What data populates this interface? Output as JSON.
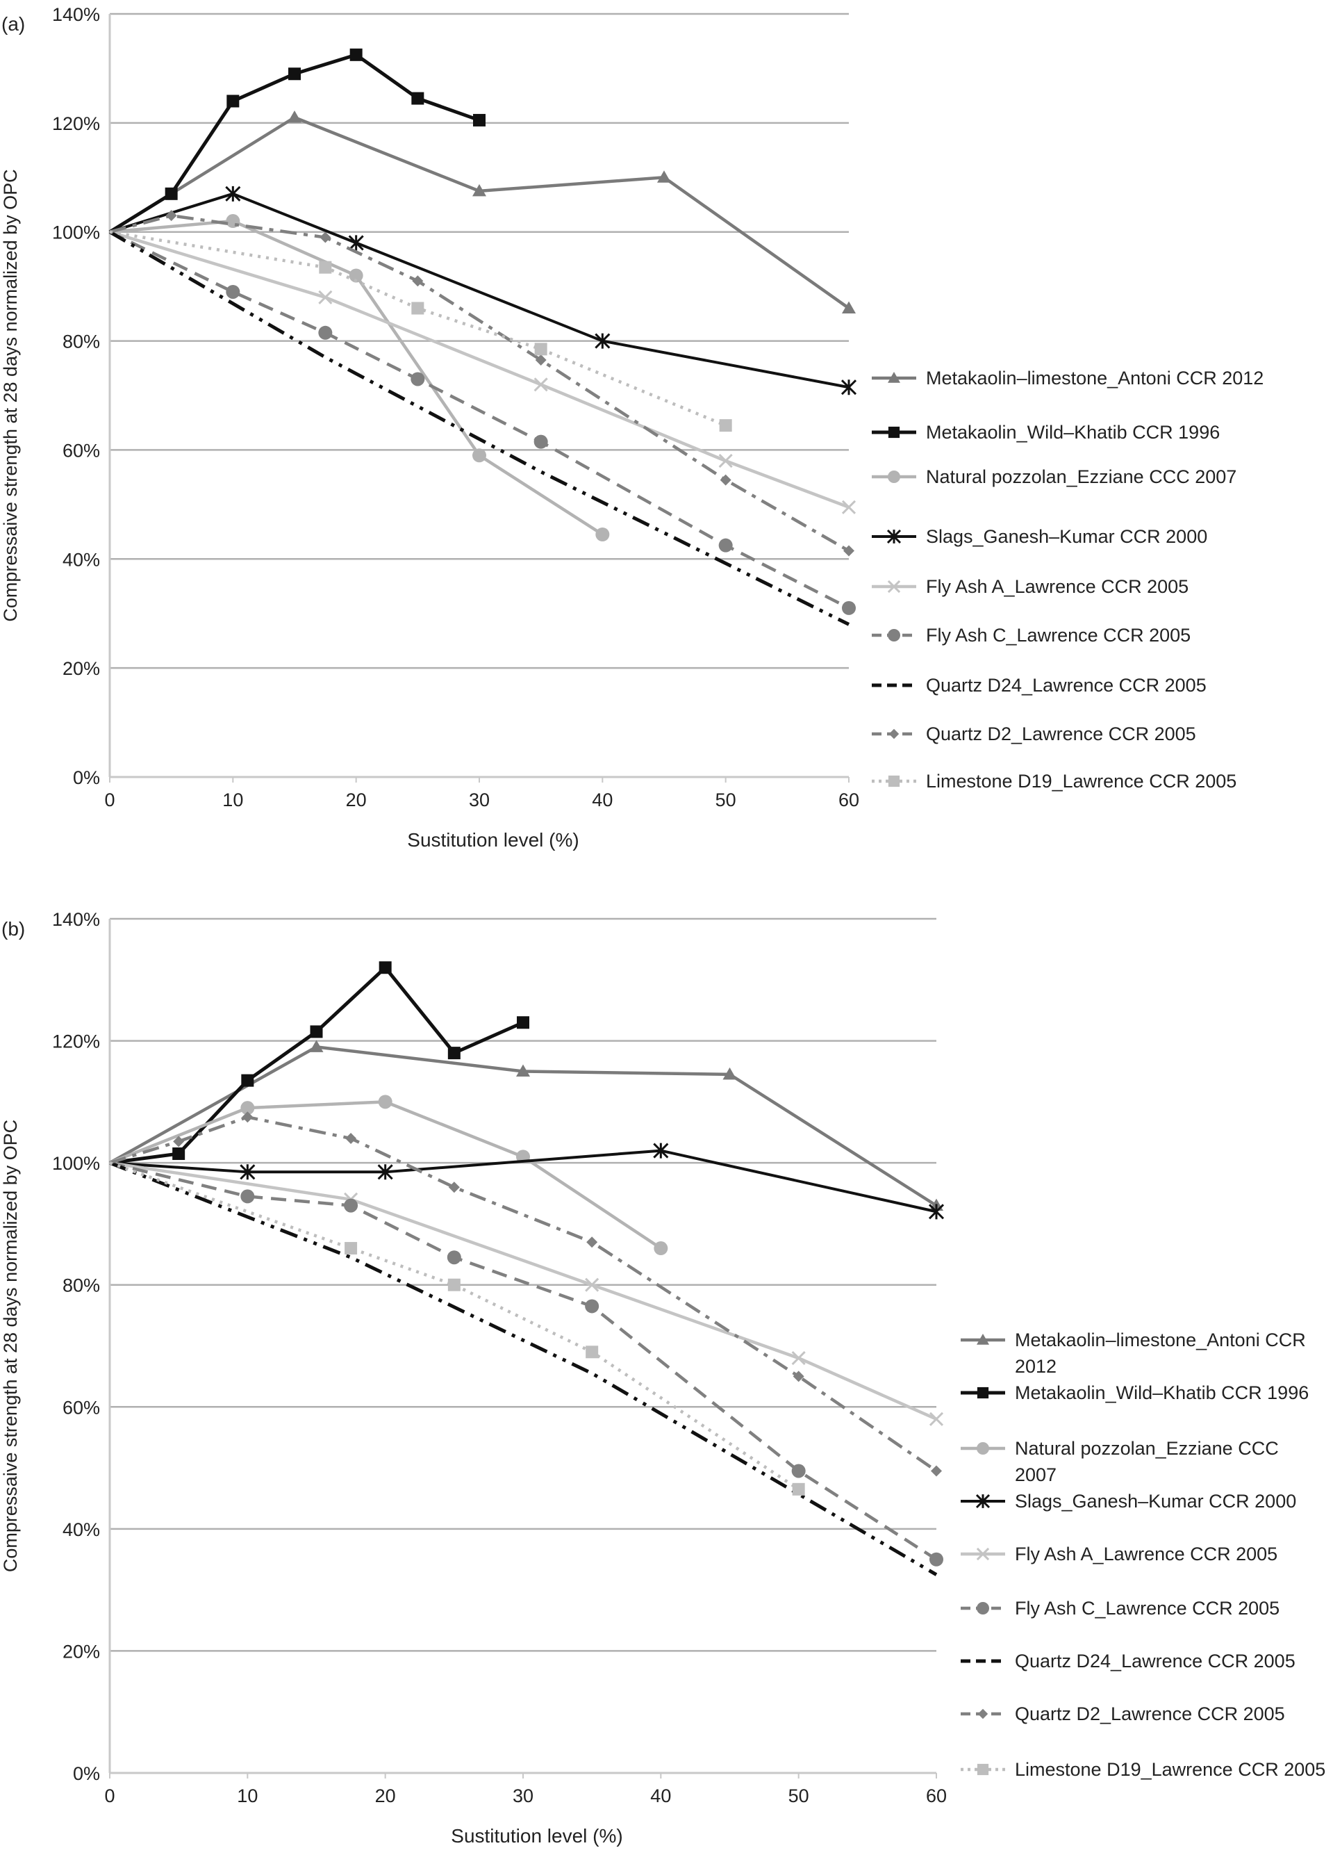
{
  "chart_data": [
    {
      "panel_label": "(a)",
      "type": "line",
      "xlabel": "Sustitution level (%)",
      "ylabel": "Compressaive strength at 28 days normalized by OPC",
      "xlim": [
        0,
        60
      ],
      "ylim": [
        0,
        140
      ],
      "x_ticks": [
        "0",
        "10",
        "20",
        "30",
        "40",
        "50",
        "60"
      ],
      "y_ticks": [
        "0%",
        "20%",
        "40%",
        "60%",
        "80%",
        "100%",
        "120%",
        "140%"
      ],
      "grid": "horizontal",
      "legend": "right",
      "series": [
        {
          "key": "mk_ls",
          "name": "Metakaolin–limestone_Antoni CCR 2012",
          "x": [
            0,
            15,
            30,
            45,
            60
          ],
          "y": [
            100,
            121,
            107.5,
            110,
            86
          ]
        },
        {
          "key": "mk_wk",
          "name": "Metakaolin_Wild–Khatib CCR 1996",
          "x": [
            0,
            5,
            10,
            15,
            20,
            25,
            30
          ],
          "y": [
            100,
            107,
            124,
            129,
            132.5,
            124.5,
            120.5
          ]
        },
        {
          "key": "np_ez",
          "name": "Natural pozzolan_Ezziane CCC 2007",
          "x": [
            0,
            10,
            20,
            30,
            40
          ],
          "y": [
            100,
            102,
            92,
            59,
            44.5
          ]
        },
        {
          "key": "sl_gk",
          "name": "Slags_Ganesh–Kumar CCR 2000",
          "x": [
            0,
            10,
            20,
            40,
            60
          ],
          "y": [
            100,
            107,
            98,
            80,
            71.5
          ]
        },
        {
          "key": "fa_a",
          "name": "Fly Ash A_Lawrence CCR 2005",
          "x": [
            0,
            17.5,
            35,
            50,
            60
          ],
          "y": [
            100,
            88,
            72,
            58,
            49.5
          ]
        },
        {
          "key": "fa_c",
          "name": "Fly Ash C_Lawrence CCR 2005",
          "x": [
            0,
            10,
            17.5,
            25,
            35,
            50,
            60
          ],
          "y": [
            100,
            89,
            81.5,
            73,
            61.5,
            42.5,
            31
          ]
        },
        {
          "key": "qd24",
          "name": "Quartz D24_Lawrence CCR 2005",
          "x": [
            0,
            17.5,
            35,
            60
          ],
          "y": [
            100,
            77,
            56,
            28
          ]
        },
        {
          "key": "qd2",
          "name": "Quartz D2_Lawrence CCR 2005",
          "x": [
            0,
            5,
            17.5,
            25,
            35,
            50,
            60
          ],
          "y": [
            100,
            103,
            99,
            91,
            76.5,
            54.5,
            41.5
          ]
        },
        {
          "key": "ls19",
          "name": "Limestone D19_Lawrence CCR 2005",
          "x": [
            0,
            17.5,
            25,
            35,
            50
          ],
          "y": [
            100,
            93.5,
            86,
            78.5,
            64.5
          ]
        }
      ]
    },
    {
      "panel_label": "(b)",
      "type": "line",
      "xlabel": "Sustitution level (%)",
      "ylabel": "Compressaive strength at 28 days normalized by OPC",
      "xlim": [
        0,
        60
      ],
      "ylim": [
        0,
        140
      ],
      "x_ticks": [
        "0",
        "10",
        "20",
        "30",
        "40",
        "50",
        "60"
      ],
      "y_ticks": [
        "0%",
        "20%",
        "40%",
        "60%",
        "80%",
        "100%",
        "120%",
        "140%"
      ],
      "grid": "horizontal",
      "legend": "right",
      "series": [
        {
          "key": "mk_ls",
          "name": "Metakaolin–limestone_Antoni CCR 2012",
          "x": [
            0,
            15,
            30,
            45,
            60
          ],
          "y": [
            100,
            119,
            115,
            114.5,
            93
          ]
        },
        {
          "key": "mk_wk",
          "name": "Metakaolin_Wild–Khatib CCR 1996",
          "x": [
            0,
            5,
            10,
            15,
            20,
            25,
            30
          ],
          "y": [
            100,
            101.5,
            113.5,
            121.5,
            132,
            118,
            123
          ]
        },
        {
          "key": "np_ez",
          "name": "Natural pozzolan_Ezziane CCC 2007",
          "x": [
            0,
            10,
            20,
            30,
            40
          ],
          "y": [
            100,
            109,
            110,
            101,
            86
          ]
        },
        {
          "key": "sl_gk",
          "name": "Slags_Ganesh–Kumar CCR 2000",
          "x": [
            0,
            10,
            20,
            40,
            60
          ],
          "y": [
            100,
            98.5,
            98.5,
            102,
            92
          ]
        },
        {
          "key": "fa_a",
          "name": "Fly Ash A_Lawrence CCR 2005",
          "x": [
            0,
            17.5,
            35,
            50,
            60
          ],
          "y": [
            100,
            94,
            80,
            68,
            58
          ]
        },
        {
          "key": "fa_c",
          "name": "Fly Ash C_Lawrence CCR 2005",
          "x": [
            0,
            10,
            17.5,
            25,
            35,
            50,
            60
          ],
          "y": [
            100,
            94.5,
            93,
            84.5,
            76.5,
            49.5,
            35
          ]
        },
        {
          "key": "qd24",
          "name": "Quartz D24_Lawrence CCR 2005",
          "x": [
            0,
            17.5,
            35,
            60
          ],
          "y": [
            100,
            84.5,
            65.5,
            32.5
          ]
        },
        {
          "key": "qd2",
          "name": "Quartz D2_Lawrence CCR 2005",
          "x": [
            0,
            5,
            10,
            17.5,
            25,
            35,
            50,
            60
          ],
          "y": [
            100,
            103.5,
            107.5,
            104,
            96,
            87,
            65,
            49.5
          ]
        },
        {
          "key": "ls19",
          "name": "Limestone D19_Lawrence CCR 2005",
          "x": [
            0,
            17.5,
            25,
            35,
            50
          ],
          "y": [
            100,
            86,
            80,
            69,
            46.5
          ]
        }
      ]
    }
  ]
}
